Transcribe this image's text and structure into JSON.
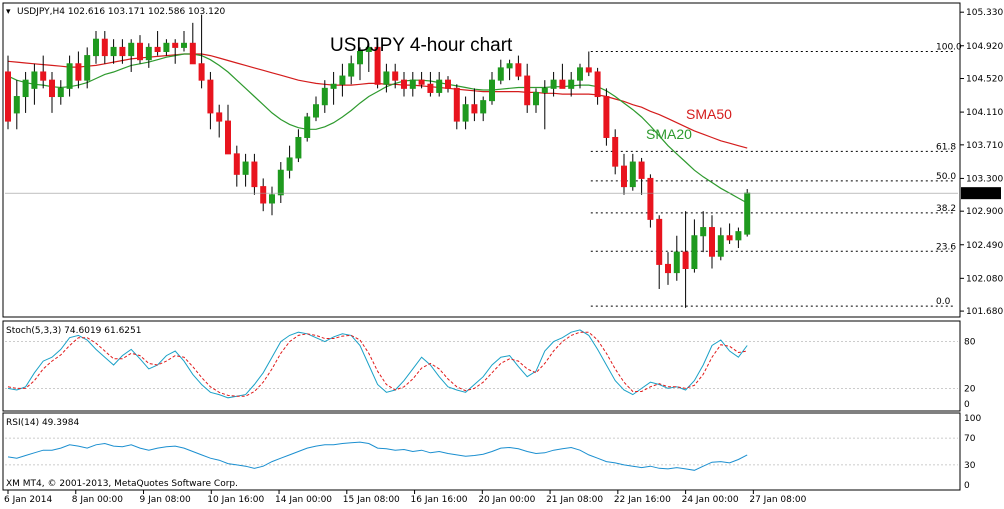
{
  "header": {
    "symbol_info": "USDJPY,H4  102.616 103.171 102.586 103.120"
  },
  "chart_title": "USDJPY 4-hour chart",
  "colors": {
    "bull": "#1f9a1f",
    "bear": "#e8141e",
    "sma20": "#2e9a2e",
    "sma50": "#d41c1c",
    "stoch_main": "#1ba1c7",
    "stoch_signal": "#e01b1b",
    "rsi": "#1b8fd0",
    "fib": "#000000",
    "price_tag_bg": "#000000"
  },
  "indicators": {
    "stoch_label": "Stoch(5,3,3) 74.6019 61.6251",
    "rsi_label": "RSI(14) 49.3984"
  },
  "footer": {
    "copyright": "XM MT4, © 2001-2013, MetaQuotes Software Corp."
  },
  "chart_data": [
    {
      "type": "candlestick",
      "title": "USDJPY 4-hour chart",
      "x_tick_labels": [
        "6 Jan 2014",
        "8 Jan 00:00",
        "9 Jan 08:00",
        "10 Jan 16:00",
        "14 Jan 00:00",
        "15 Jan 08:00",
        "16 Jan 16:00",
        "20 Jan 00:00",
        "21 Jan 08:00",
        "22 Jan 16:00",
        "24 Jan 00:00",
        "27 Jan 08:00"
      ],
      "y_tick_labels": [
        "105.330",
        "104.920",
        "104.520",
        "104.110",
        "103.710",
        "103.300",
        "102.900",
        "102.490",
        "102.080",
        "101.680"
      ],
      "ylim": [
        101.62,
        105.43
      ],
      "last_price": "103.120",
      "annotations": [
        "SMA50",
        "SMA20"
      ],
      "fibonacci": [
        {
          "label": "100.0",
          "price": 104.85
        },
        {
          "label": "61.8",
          "price": 103.63
        },
        {
          "label": "50.0",
          "price": 103.27
        },
        {
          "label": "38.2",
          "price": 102.88
        },
        {
          "label": "23.6",
          "price": 102.41
        },
        {
          "label": "0.0",
          "price": 101.74
        }
      ],
      "candles": [
        {
          "o": 104.6,
          "h": 104.8,
          "l": 103.9,
          "c": 104.0
        },
        {
          "o": 104.1,
          "h": 104.5,
          "l": 103.9,
          "c": 104.3
        },
        {
          "o": 104.3,
          "h": 104.6,
          "l": 104.1,
          "c": 104.5
        },
        {
          "o": 104.4,
          "h": 104.7,
          "l": 104.2,
          "c": 104.6
        },
        {
          "o": 104.6,
          "h": 104.8,
          "l": 104.4,
          "c": 104.5
        },
        {
          "o": 104.5,
          "h": 104.6,
          "l": 104.1,
          "c": 104.3
        },
        {
          "o": 104.3,
          "h": 104.5,
          "l": 104.2,
          "c": 104.4
        },
        {
          "o": 104.4,
          "h": 104.8,
          "l": 104.3,
          "c": 104.7
        },
        {
          "o": 104.7,
          "h": 104.85,
          "l": 104.4,
          "c": 104.5
        },
        {
          "o": 104.5,
          "h": 104.9,
          "l": 104.4,
          "c": 104.8
        },
        {
          "o": 104.8,
          "h": 105.1,
          "l": 104.7,
          "c": 105.0
        },
        {
          "o": 105.0,
          "h": 105.1,
          "l": 104.7,
          "c": 104.8
        },
        {
          "o": 104.8,
          "h": 105.0,
          "l": 104.7,
          "c": 104.9
        },
        {
          "o": 104.9,
          "h": 105.0,
          "l": 104.7,
          "c": 104.8
        },
        {
          "o": 104.8,
          "h": 105.0,
          "l": 104.6,
          "c": 104.95
        },
        {
          "o": 104.95,
          "h": 105.05,
          "l": 104.7,
          "c": 104.75
        },
        {
          "o": 104.75,
          "h": 104.95,
          "l": 104.65,
          "c": 104.9
        },
        {
          "o": 104.9,
          "h": 105.1,
          "l": 104.8,
          "c": 104.85
        },
        {
          "o": 104.85,
          "h": 105.0,
          "l": 104.8,
          "c": 104.95
        },
        {
          "o": 104.95,
          "h": 105.0,
          "l": 104.7,
          "c": 104.9
        },
        {
          "o": 104.9,
          "h": 105.1,
          "l": 104.85,
          "c": 104.95
        },
        {
          "o": 104.95,
          "h": 105.2,
          "l": 104.7,
          "c": 104.7
        },
        {
          "o": 104.7,
          "h": 105.3,
          "l": 104.4,
          "c": 104.5
        },
        {
          "o": 104.5,
          "h": 104.6,
          "l": 103.9,
          "c": 104.1
        },
        {
          "o": 104.1,
          "h": 104.2,
          "l": 103.8,
          "c": 104.0
        },
        {
          "o": 104.0,
          "h": 104.2,
          "l": 103.6,
          "c": 103.6
        },
        {
          "o": 103.6,
          "h": 103.7,
          "l": 103.2,
          "c": 103.35
        },
        {
          "o": 103.35,
          "h": 103.6,
          "l": 103.2,
          "c": 103.5
        },
        {
          "o": 103.5,
          "h": 103.6,
          "l": 103.1,
          "c": 103.2
        },
        {
          "o": 103.2,
          "h": 103.3,
          "l": 102.9,
          "c": 103.0
        },
        {
          "o": 103.0,
          "h": 103.2,
          "l": 102.85,
          "c": 103.1
        },
        {
          "o": 103.1,
          "h": 103.5,
          "l": 103.0,
          "c": 103.4
        },
        {
          "o": 103.4,
          "h": 103.7,
          "l": 103.3,
          "c": 103.55
        },
        {
          "o": 103.55,
          "h": 103.9,
          "l": 103.5,
          "c": 103.8
        },
        {
          "o": 103.8,
          "h": 104.1,
          "l": 103.75,
          "c": 104.05
        },
        {
          "o": 104.05,
          "h": 104.3,
          "l": 104.0,
          "c": 104.2
        },
        {
          "o": 104.2,
          "h": 104.5,
          "l": 104.1,
          "c": 104.4
        },
        {
          "o": 104.4,
          "h": 104.6,
          "l": 104.2,
          "c": 104.45
        },
        {
          "o": 104.45,
          "h": 104.7,
          "l": 104.3,
          "c": 104.55
        },
        {
          "o": 104.55,
          "h": 104.8,
          "l": 104.45,
          "c": 104.7
        },
        {
          "o": 104.7,
          "h": 104.9,
          "l": 104.5,
          "c": 104.85
        },
        {
          "o": 104.85,
          "h": 104.95,
          "l": 104.6,
          "c": 104.9
        },
        {
          "o": 104.9,
          "h": 104.95,
          "l": 104.4,
          "c": 104.45
        },
        {
          "o": 104.45,
          "h": 104.7,
          "l": 104.35,
          "c": 104.6
        },
        {
          "o": 104.6,
          "h": 104.7,
          "l": 104.4,
          "c": 104.5
        },
        {
          "o": 104.5,
          "h": 104.6,
          "l": 104.3,
          "c": 104.4
        },
        {
          "o": 104.4,
          "h": 104.6,
          "l": 104.3,
          "c": 104.5
        },
        {
          "o": 104.5,
          "h": 104.6,
          "l": 104.4,
          "c": 104.45
        },
        {
          "o": 104.45,
          "h": 104.6,
          "l": 104.3,
          "c": 104.35
        },
        {
          "o": 104.35,
          "h": 104.6,
          "l": 104.3,
          "c": 104.5
        },
        {
          "o": 104.5,
          "h": 104.55,
          "l": 104.35,
          "c": 104.4
        },
        {
          "o": 104.4,
          "h": 104.45,
          "l": 103.9,
          "c": 104.0
        },
        {
          "o": 104.0,
          "h": 104.3,
          "l": 103.9,
          "c": 104.2
        },
        {
          "o": 104.2,
          "h": 104.4,
          "l": 104.0,
          "c": 104.1
        },
        {
          "o": 104.1,
          "h": 104.3,
          "l": 104.0,
          "c": 104.25
        },
        {
          "o": 104.25,
          "h": 104.6,
          "l": 104.2,
          "c": 104.5
        },
        {
          "o": 104.5,
          "h": 104.75,
          "l": 104.45,
          "c": 104.65
        },
        {
          "o": 104.65,
          "h": 104.75,
          "l": 104.5,
          "c": 104.7
        },
        {
          "o": 104.7,
          "h": 104.8,
          "l": 104.5,
          "c": 104.55
        },
        {
          "o": 104.55,
          "h": 104.7,
          "l": 104.1,
          "c": 104.2
        },
        {
          "o": 104.2,
          "h": 104.4,
          "l": 104.1,
          "c": 104.35
        },
        {
          "o": 104.35,
          "h": 104.5,
          "l": 103.9,
          "c": 104.4
        },
        {
          "o": 104.4,
          "h": 104.6,
          "l": 104.3,
          "c": 104.5
        },
        {
          "o": 104.5,
          "h": 104.7,
          "l": 104.4,
          "c": 104.4
        },
        {
          "o": 104.4,
          "h": 104.6,
          "l": 104.3,
          "c": 104.5
        },
        {
          "o": 104.5,
          "h": 104.7,
          "l": 104.4,
          "c": 104.65
        },
        {
          "o": 104.65,
          "h": 104.85,
          "l": 104.55,
          "c": 104.6
        },
        {
          "o": 104.6,
          "h": 104.65,
          "l": 104.2,
          "c": 104.3
        },
        {
          "o": 104.3,
          "h": 104.4,
          "l": 103.7,
          "c": 103.8
        },
        {
          "o": 103.8,
          "h": 103.9,
          "l": 103.35,
          "c": 103.45
        },
        {
          "o": 103.45,
          "h": 103.6,
          "l": 103.1,
          "c": 103.2
        },
        {
          "o": 103.2,
          "h": 103.6,
          "l": 103.15,
          "c": 103.5
        },
        {
          "o": 103.5,
          "h": 103.55,
          "l": 103.1,
          "c": 103.3
        },
        {
          "o": 103.3,
          "h": 103.35,
          "l": 102.7,
          "c": 102.8
        },
        {
          "o": 102.8,
          "h": 102.85,
          "l": 101.95,
          "c": 102.25
        },
        {
          "o": 102.25,
          "h": 102.4,
          "l": 102.0,
          "c": 102.15
        },
        {
          "o": 102.15,
          "h": 102.6,
          "l": 102.05,
          "c": 102.4
        },
        {
          "o": 102.4,
          "h": 102.9,
          "l": 101.72,
          "c": 102.2
        },
        {
          "o": 102.2,
          "h": 102.8,
          "l": 102.15,
          "c": 102.6
        },
        {
          "o": 102.6,
          "h": 102.9,
          "l": 102.4,
          "c": 102.7
        },
        {
          "o": 102.7,
          "h": 102.85,
          "l": 102.2,
          "c": 102.35
        },
        {
          "o": 102.35,
          "h": 102.7,
          "l": 102.3,
          "c": 102.6
        },
        {
          "o": 102.6,
          "h": 102.75,
          "l": 102.5,
          "c": 102.55
        },
        {
          "o": 102.55,
          "h": 102.7,
          "l": 102.45,
          "c": 102.65
        },
        {
          "o": 102.62,
          "h": 103.17,
          "l": 102.59,
          "c": 103.12
        }
      ],
      "sma20": [
        104.55,
        104.5,
        104.47,
        104.45,
        104.44,
        104.42,
        104.41,
        104.42,
        104.44,
        104.47,
        104.52,
        104.57,
        104.6,
        104.64,
        104.68,
        104.7,
        104.72,
        104.75,
        104.78,
        104.8,
        104.82,
        104.82,
        104.8,
        104.75,
        104.68,
        104.6,
        104.5,
        104.4,
        104.3,
        104.2,
        104.1,
        104.02,
        103.96,
        103.92,
        103.9,
        103.9,
        103.93,
        103.98,
        104.05,
        104.13,
        104.22,
        104.3,
        104.36,
        104.42,
        104.46,
        104.49,
        104.5,
        104.5,
        104.49,
        104.47,
        104.45,
        104.43,
        104.41,
        104.39,
        104.38,
        104.38,
        104.39,
        104.4,
        104.41,
        104.41,
        104.41,
        104.41,
        104.42,
        104.42,
        104.43,
        104.44,
        104.44,
        104.42,
        104.37,
        104.3,
        104.22,
        104.14,
        104.05,
        103.94,
        103.82,
        103.7,
        103.6,
        103.5,
        103.4,
        103.32,
        103.25,
        103.18,
        103.12,
        103.06,
        103.0
      ],
      "sma50": [
        104.73,
        104.72,
        104.71,
        104.7,
        104.69,
        104.68,
        104.67,
        104.66,
        104.66,
        104.67,
        104.68,
        104.7,
        104.72,
        104.74,
        104.76,
        104.77,
        104.78,
        104.79,
        104.8,
        104.81,
        104.82,
        104.82,
        104.82,
        104.8,
        104.77,
        104.74,
        104.71,
        104.68,
        104.65,
        104.62,
        104.59,
        104.56,
        104.53,
        104.5,
        104.48,
        104.46,
        104.45,
        104.44,
        104.44,
        104.44,
        104.45,
        104.46,
        104.46,
        104.45,
        104.45,
        104.44,
        104.44,
        104.43,
        104.42,
        104.41,
        104.4,
        104.39,
        104.38,
        104.37,
        104.36,
        104.36,
        104.36,
        104.36,
        104.36,
        104.35,
        104.35,
        104.34,
        104.34,
        104.33,
        104.33,
        104.33,
        104.33,
        104.32,
        104.3,
        104.27,
        104.24,
        104.2,
        104.17,
        104.12,
        104.08,
        104.03,
        103.98,
        103.93,
        103.88,
        103.84,
        103.8,
        103.76,
        103.73,
        103.7,
        103.67
      ],
      "stoch": {
        "levels": [
          80,
          20,
          0
        ],
        "ylim": [
          0,
          100
        ],
        "main": [
          20,
          18,
          22,
          40,
          55,
          60,
          70,
          85,
          88,
          82,
          70,
          60,
          50,
          62,
          70,
          58,
          45,
          50,
          62,
          68,
          55,
          38,
          25,
          15,
          12,
          8,
          10,
          12,
          25,
          40,
          60,
          80,
          88,
          92,
          90,
          85,
          80,
          86,
          90,
          88,
          75,
          50,
          25,
          15,
          18,
          30,
          45,
          60,
          50,
          35,
          22,
          18,
          15,
          25,
          35,
          50,
          60,
          62,
          48,
          35,
          42,
          68,
          80,
          85,
          92,
          95,
          88,
          70,
          50,
          30,
          18,
          12,
          20,
          28,
          25,
          20,
          22,
          18,
          30,
          50,
          75,
          82,
          68,
          60,
          75
        ],
        "signal": [
          22,
          20,
          20,
          30,
          45,
          55,
          63,
          75,
          85,
          85,
          78,
          68,
          58,
          58,
          65,
          62,
          52,
          50,
          55,
          62,
          60,
          48,
          34,
          22,
          15,
          11,
          10,
          10,
          16,
          28,
          45,
          65,
          80,
          88,
          90,
          88,
          84,
          84,
          87,
          88,
          82,
          65,
          42,
          25,
          18,
          22,
          32,
          46,
          52,
          45,
          32,
          22,
          17,
          20,
          28,
          40,
          52,
          58,
          55,
          45,
          40,
          52,
          68,
          80,
          88,
          92,
          92,
          82,
          65,
          45,
          28,
          16,
          16,
          22,
          26,
          22,
          22,
          20,
          24,
          38,
          60,
          76,
          74,
          66,
          68
        ]
      },
      "rsi": {
        "levels": [
          100,
          70,
          30,
          0
        ],
        "ylim": [
          0,
          100
        ],
        "values": [
          42,
          40,
          44,
          48,
          52,
          52,
          55,
          60,
          58,
          55,
          60,
          62,
          58,
          57,
          60,
          55,
          52,
          55,
          57,
          58,
          55,
          50,
          45,
          40,
          37,
          32,
          30,
          28,
          25,
          28,
          35,
          40,
          45,
          50,
          55,
          58,
          60,
          60,
          62,
          63,
          64,
          62,
          55,
          54,
          52,
          53,
          50,
          52,
          48,
          50,
          47,
          45,
          43,
          44,
          46,
          50,
          55,
          56,
          54,
          50,
          47,
          48,
          52,
          54,
          56,
          52,
          45,
          40,
          35,
          33,
          30,
          28,
          26,
          28,
          25,
          24,
          26,
          24,
          22,
          28,
          34,
          35,
          33,
          38,
          45
        ]
      }
    }
  ]
}
